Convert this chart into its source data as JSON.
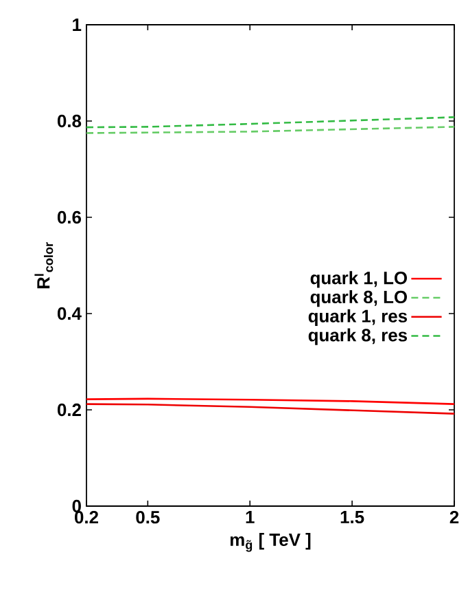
{
  "chart_data": {
    "type": "line",
    "xlabel": "m$_{g̃}$  [ TeV ]",
    "ylabel": "R$^{l}$$_{color}$",
    "x": [
      0.2,
      0.5,
      1,
      1.5,
      2
    ],
    "series": [
      {
        "name": "quark 1, LO",
        "color": "#ff0000",
        "line_style": "solid",
        "values": [
          0.222,
          0.223,
          0.221,
          0.218,
          0.212
        ]
      },
      {
        "name": "quark 8, LO",
        "color": "#66cc66",
        "line_style": "dashed",
        "values": [
          0.775,
          0.776,
          0.778,
          0.783,
          0.788
        ]
      },
      {
        "name": "quark 1, res",
        "color": "#ee0000",
        "line_style": "solid",
        "values": [
          0.212,
          0.211,
          0.206,
          0.199,
          0.192
        ]
      },
      {
        "name": "quark 8, res",
        "color": "#33bb44",
        "line_style": "dashed",
        "values": [
          0.787,
          0.788,
          0.794,
          0.801,
          0.808
        ]
      }
    ],
    "xlim": [
      0.2,
      2
    ],
    "ylim": [
      0,
      1
    ],
    "xticks": [
      0.2,
      0.5,
      1,
      1.5,
      2
    ],
    "yticks": [
      0,
      0.2,
      0.4,
      0.6,
      0.8,
      1
    ],
    "grid": false,
    "legend": "right",
    "marker": "none"
  }
}
